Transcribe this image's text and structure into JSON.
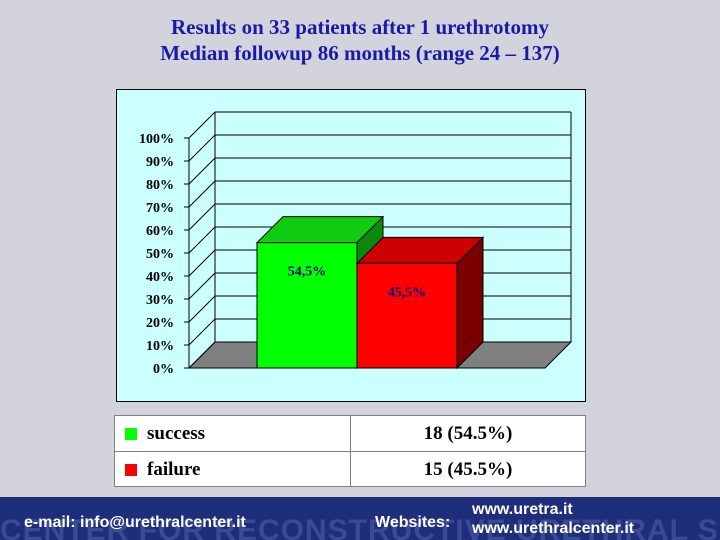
{
  "title": {
    "line1": "Results on 33 patients after 1 urethrotomy",
    "line2": "Median followup 86 months (range 24 – 137)"
  },
  "chart_data": {
    "type": "bar",
    "title": "",
    "xlabel": "",
    "ylabel": "",
    "ylim": [
      0,
      100
    ],
    "yticks": [
      "0%",
      "10%",
      "20%",
      "30%",
      "40%",
      "50%",
      "60%",
      "70%",
      "80%",
      "90%",
      "100%"
    ],
    "categories": [
      "success",
      "failure"
    ],
    "values": [
      54.5,
      45.5
    ],
    "data_labels": [
      "54,5%",
      "45,5%"
    ],
    "colors": [
      "#00ff00",
      "#ff0000"
    ],
    "colors_top": [
      "#10cc10",
      "#cc0000"
    ],
    "colors_side": [
      "#0a8a0a",
      "#7a0000"
    ],
    "label_colors": [
      "#000080",
      "#000080"
    ],
    "grid": true,
    "style": "3d",
    "background": "#ccffff"
  },
  "legend": {
    "rows": [
      {
        "label": "success",
        "value": "18 (54.5%)",
        "color": "#00ff00"
      },
      {
        "label": "failure",
        "value": "15 (45.5%)",
        "color": "#ff0000"
      }
    ]
  },
  "footer": {
    "watermark": "CENTER FOR RECONSTRUCTIVE URETHRAL SURGERY",
    "email": "e-mail: info@urethralcenter.it",
    "websites_label": "Websites:",
    "site1": "www.uretra.it",
    "site2": "www.urethralcenter.it"
  }
}
